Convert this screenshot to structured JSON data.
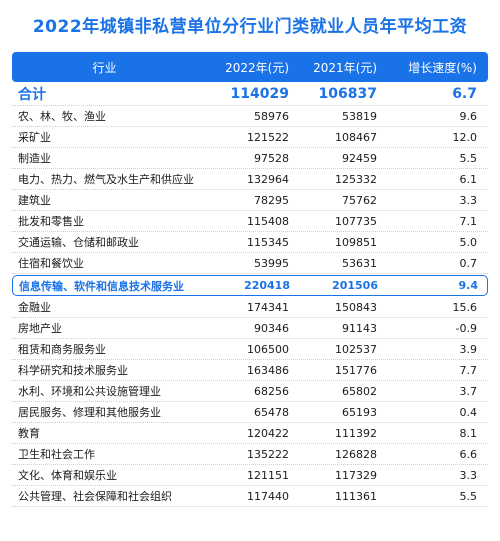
{
  "title": "2022年城镇非私营单位分行业门类就业人员年平均工资",
  "headers": [
    "行业",
    "2022年(元)",
    "2021年(元)",
    "增长速度(%)"
  ],
  "rows": [
    {
      "name": "合计",
      "y2022": "114029",
      "y2021": "106837",
      "growth": "6.7",
      "type": "total"
    },
    {
      "name": "农、林、牧、渔业",
      "y2022": "58976",
      "y2021": "53819",
      "growth": "9.6"
    },
    {
      "name": "采矿业",
      "y2022": "121522",
      "y2021": "108467",
      "growth": "12.0"
    },
    {
      "name": "制造业",
      "y2022": "97528",
      "y2021": "92459",
      "growth": "5.5"
    },
    {
      "name": "电力、热力、燃气及水生产和供应业",
      "y2022": "132964",
      "y2021": "125332",
      "growth": "6.1"
    },
    {
      "name": "建筑业",
      "y2022": "78295",
      "y2021": "75762",
      "growth": "3.3"
    },
    {
      "name": "批发和零售业",
      "y2022": "115408",
      "y2021": "107735",
      "growth": "7.1"
    },
    {
      "name": "交通运输、仓储和邮政业",
      "y2022": "115345",
      "y2021": "109851",
      "growth": "5.0"
    },
    {
      "name": "住宿和餐饮业",
      "y2022": "53995",
      "y2021": "53631",
      "growth": "0.7"
    },
    {
      "name": "信息传输、软件和信息技术服务业",
      "y2022": "220418",
      "y2021": "201506",
      "growth": "9.4",
      "type": "highlight"
    },
    {
      "name": "金融业",
      "y2022": "174341",
      "y2021": "150843",
      "growth": "15.6"
    },
    {
      "name": "房地产业",
      "y2022": "90346",
      "y2021": "91143",
      "growth": "-0.9"
    },
    {
      "name": "租赁和商务服务业",
      "y2022": "106500",
      "y2021": "102537",
      "growth": "3.9"
    },
    {
      "name": "科学研究和技术服务业",
      "y2022": "163486",
      "y2021": "151776",
      "growth": "7.7"
    },
    {
      "name": "水利、环境和公共设施管理业",
      "y2022": "68256",
      "y2021": "65802",
      "growth": "3.7"
    },
    {
      "name": "居民服务、修理和其他服务业",
      "y2022": "65478",
      "y2021": "65193",
      "growth": "0.4"
    },
    {
      "name": "教育",
      "y2022": "120422",
      "y2021": "111392",
      "growth": "8.1"
    },
    {
      "name": "卫生和社会工作",
      "y2022": "135222",
      "y2021": "126828",
      "growth": "6.6"
    },
    {
      "name": "文化、体育和娱乐业",
      "y2022": "121151",
      "y2021": "117329",
      "growth": "3.3"
    },
    {
      "name": "公共管理、社会保障和社会组织",
      "y2022": "117440",
      "y2021": "111361",
      "growth": "5.5"
    }
  ],
  "colors": {
    "accent": "#1a72e8",
    "text": "#1b1b1b",
    "divider": "#cfcfcf"
  }
}
